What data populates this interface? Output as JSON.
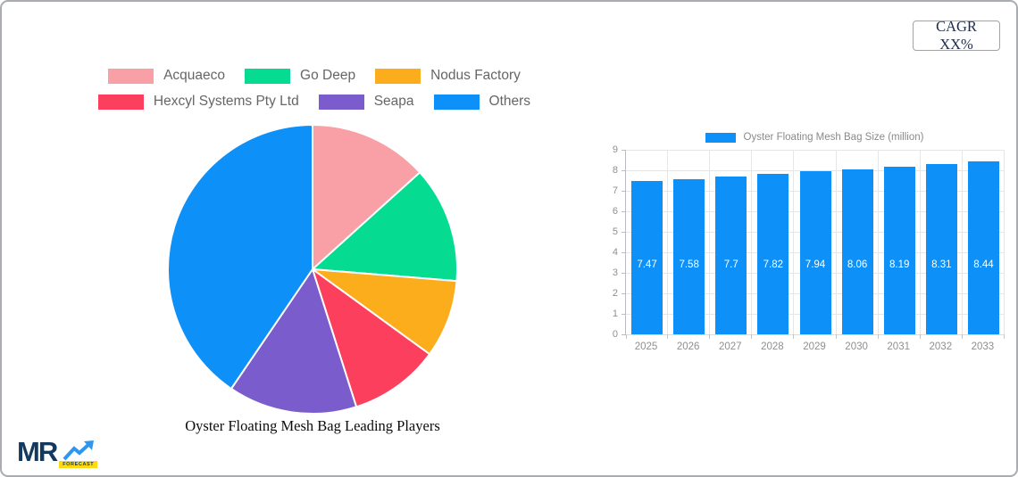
{
  "header": {
    "cagr_label": "CAGR XX%"
  },
  "logo": {
    "text": "MR",
    "badge": "FORECAST",
    "navy": "#14395F",
    "arrow_blue": "#2B97F0",
    "badge_yellow": "#FFD912"
  },
  "chart_data": [
    {
      "type": "pie",
      "title": "Oyster Floating Mesh Bag Leading Players",
      "legend_position": "top",
      "direction": "clockwise",
      "start_angle_deg": 0,
      "series": [
        {
          "name": "Acquaeco",
          "value": 13.3,
          "color": "#F9A0A7"
        },
        {
          "name": "Go Deep",
          "value": 13.0,
          "color": "#06DB92"
        },
        {
          "name": "Nodus Factory",
          "value": 8.7,
          "color": "#FBAD1C"
        },
        {
          "name": "Hexcyl Systems Pty Ltd",
          "value": 10.1,
          "color": "#FB3F5C"
        },
        {
          "name": "Seapa",
          "value": 14.4,
          "color": "#7A5CCC"
        },
        {
          "name": "Others",
          "value": 40.5,
          "color": "#0D90F8"
        }
      ]
    },
    {
      "type": "bar",
      "legend": "Oyster Floating Mesh Bag Size (million)",
      "categories": [
        "2025",
        "2026",
        "2027",
        "2028",
        "2029",
        "2030",
        "2031",
        "2032",
        "2033"
      ],
      "values": [
        7.47,
        7.58,
        7.7,
        7.82,
        7.94,
        8.06,
        8.19,
        8.31,
        8.44
      ],
      "value_labels": [
        "7.47",
        "7.58",
        "7.7",
        "7.82",
        "7.94",
        "8.06",
        "8.19",
        "8.31",
        "8.44"
      ],
      "bar_color": "#0D90F8",
      "value_label_color": "#FFFFFF",
      "ylim": [
        0,
        9
      ],
      "ytick_step": 1,
      "grid": true,
      "legend_position": "top"
    }
  ]
}
